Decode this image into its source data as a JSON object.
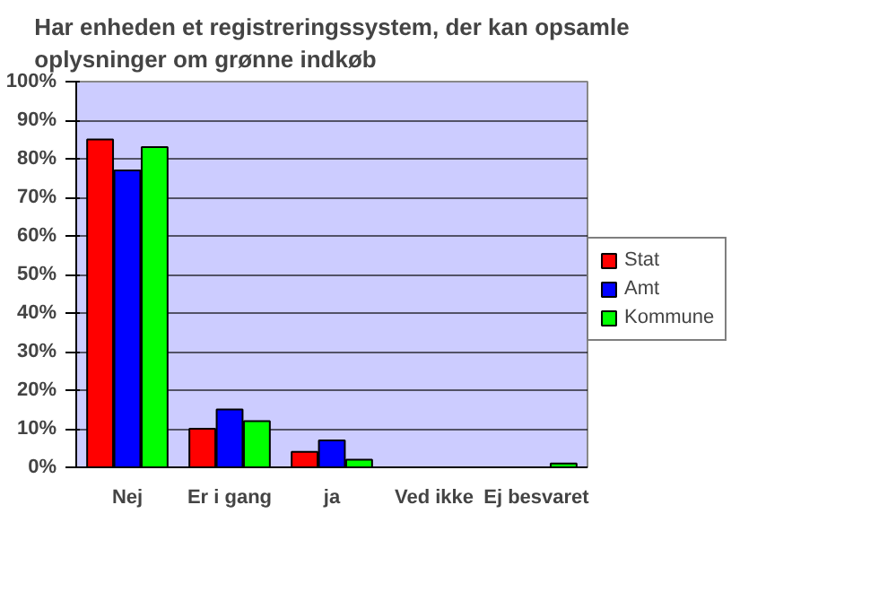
{
  "chart_data": {
    "type": "bar",
    "title": "Har enheden et registreringssystem, der kan opsamle oplysninger om grønne indkøb",
    "categories": [
      "Nej",
      "Er i gang",
      "ja",
      "Ved ikke",
      "Ej besvaret"
    ],
    "series": [
      {
        "name": "Stat",
        "color": "#ff0000",
        "values": [
          85,
          10,
          4,
          0,
          0
        ]
      },
      {
        "name": "Amt",
        "color": "#0000ff",
        "values": [
          77,
          15,
          7,
          0,
          0
        ]
      },
      {
        "name": "Kommune",
        "color": "#00ff00",
        "values": [
          83,
          12,
          2,
          0,
          1
        ]
      }
    ],
    "ylim": [
      0,
      100
    ],
    "yticks": [
      {
        "value": 0,
        "label": "0%"
      },
      {
        "value": 10,
        "label": "10%"
      },
      {
        "value": 20,
        "label": "20%"
      },
      {
        "value": 30,
        "label": "30%"
      },
      {
        "value": 40,
        "label": "40%"
      },
      {
        "value": 50,
        "label": "50%"
      },
      {
        "value": 60,
        "label": "60%"
      },
      {
        "value": 70,
        "label": "70%"
      },
      {
        "value": 80,
        "label": "80%"
      },
      {
        "value": 90,
        "label": "90%"
      },
      {
        "value": 100,
        "label": "100%"
      }
    ],
    "grid": "y",
    "legend": "right"
  }
}
